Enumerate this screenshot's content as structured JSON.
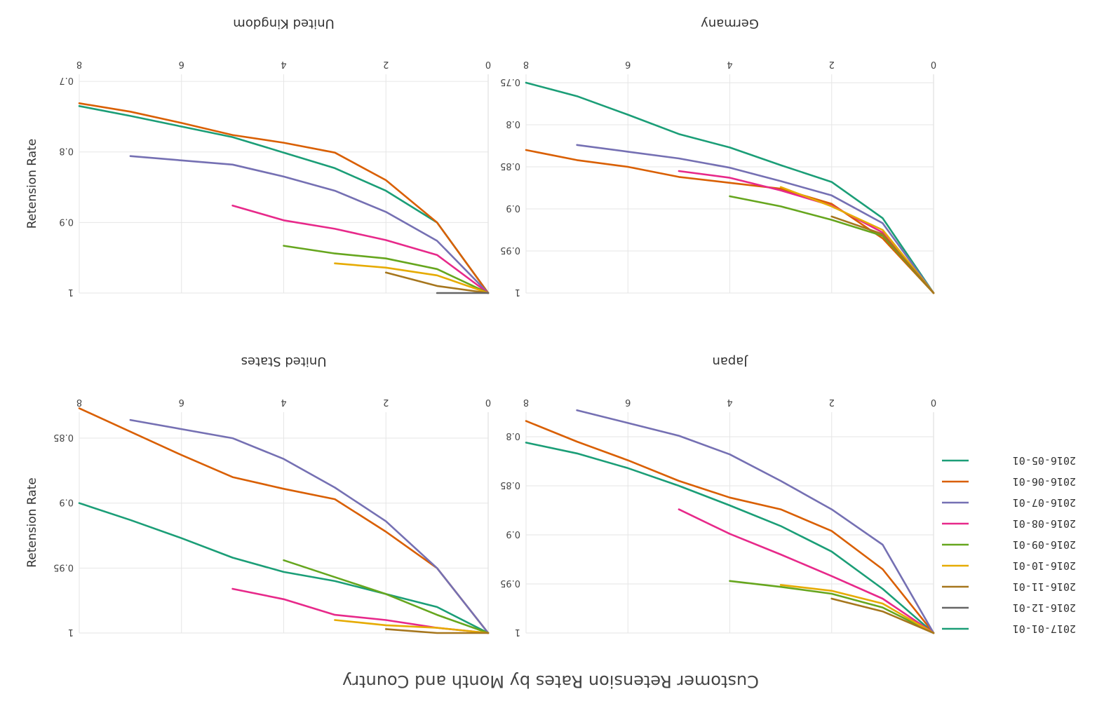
{
  "chart_data": {
    "type": "line",
    "title": "Customer Retension Rates by Month and Country",
    "ylabel": "Retension Rate",
    "x_ticks": [
      "0",
      "2",
      "4",
      "6",
      "8"
    ],
    "xlim": [
      0,
      8
    ],
    "legend_position": "left-bottom",
    "colors": {
      "2016-05-01": "#1b9e77",
      "2016-06-01": "#d95f02",
      "2016-07-01": "#7570b3",
      "2016-08-01": "#e7298a",
      "2016-09-01": "#66a61e",
      "2016-10-01": "#e6ab02",
      "2016-11-01": "#a6761d",
      "2016-12-01": "#666666",
      "2017-01-01": "#1b9e77"
    },
    "legend": [
      "2017-01-01",
      "2016-12-01",
      "2016-11-01",
      "2016-10-01",
      "2016-09-01",
      "2016-08-01",
      "2016-07-01",
      "2016-06-01",
      "2016-05-01"
    ],
    "panels": [
      {
        "title": "United Kingdom",
        "y_ticks": [
          "1",
          "0.9",
          "0.8",
          "0.7"
        ],
        "y_tick_values": [
          1,
          0.9,
          0.8,
          0.7
        ],
        "ylim": [
          0.69,
          1.0
        ],
        "series": [
          {
            "name": "2016-05-01",
            "x": [
              0,
              1,
              2,
              3,
              4,
              5,
              6,
              7,
              8
            ],
            "values": [
              1,
              0.9,
              0.855,
              0.823,
              0.801,
              0.779,
              0.764,
              0.749,
              0.735
            ]
          },
          {
            "name": "2016-06-01",
            "x": [
              0,
              1,
              2,
              3,
              4,
              5,
              6,
              7,
              8
            ],
            "values": [
              1,
              0.9,
              0.84,
              0.801,
              0.787,
              0.776,
              0.759,
              0.743,
              0.731
            ]
          },
          {
            "name": "2016-07-01",
            "x": [
              0,
              1,
              2,
              3,
              4,
              5,
              6,
              7
            ],
            "values": [
              1,
              0.926,
              0.885,
              0.855,
              0.835,
              0.818,
              0.812,
              0.806
            ]
          },
          {
            "name": "2016-08-01",
            "x": [
              0,
              1,
              2,
              3,
              4,
              5
            ],
            "values": [
              1,
              0.946,
              0.925,
              0.909,
              0.897,
              0.876
            ]
          },
          {
            "name": "2016-09-01",
            "x": [
              0,
              1,
              2,
              3,
              4
            ],
            "values": [
              1,
              0.966,
              0.951,
              0.944,
              0.933
            ]
          },
          {
            "name": "2016-10-01",
            "x": [
              0,
              1,
              2,
              3
            ],
            "values": [
              1,
              0.975,
              0.964,
              0.958
            ]
          },
          {
            "name": "2016-11-01",
            "x": [
              0,
              1,
              2
            ],
            "values": [
              1,
              0.99,
              0.971
            ]
          },
          {
            "name": "2016-12-01",
            "x": [
              0,
              1
            ],
            "values": [
              1,
              1
            ]
          }
        ]
      },
      {
        "title": "Germany",
        "y_ticks": [
          "1",
          "0.95",
          "0.9",
          "0.85",
          "0.8",
          "0.75"
        ],
        "y_tick_values": [
          1,
          0.95,
          0.9,
          0.85,
          0.8,
          0.75
        ],
        "ylim": [
          0.74,
          1.0
        ],
        "series": [
          {
            "name": "2016-05-01",
            "x": [
              0,
              1,
              2,
              3,
              4,
              5,
              6,
              7,
              8
            ],
            "values": [
              1,
              0.911,
              0.868,
              0.848,
              0.827,
              0.811,
              0.788,
              0.766,
              0.75
            ]
          },
          {
            "name": "2016-06-01",
            "x": [
              0,
              1,
              2,
              3,
              4,
              5,
              6,
              7,
              8
            ],
            "values": [
              1,
              0.935,
              0.894,
              0.876,
              0.869,
              0.862,
              0.85,
              0.842,
              0.83
            ]
          },
          {
            "name": "2016-07-01",
            "x": [
              0,
              1,
              2,
              3,
              4,
              5,
              6,
              7
            ],
            "values": [
              1,
              0.917,
              0.884,
              0.867,
              0.851,
              0.84,
              0.832,
              0.824
            ]
          },
          {
            "name": "2016-08-01",
            "x": [
              0,
              1,
              2,
              3,
              4,
              5
            ],
            "values": [
              1,
              0.928,
              0.896,
              0.878,
              0.863,
              0.855
            ]
          },
          {
            "name": "2016-09-01",
            "x": [
              0,
              1,
              2,
              3,
              4
            ],
            "values": [
              1,
              0.932,
              0.913,
              0.897,
              0.885
            ]
          },
          {
            "name": "2016-10-01",
            "x": [
              0,
              1,
              2,
              3
            ],
            "values": [
              1,
              0.925,
              0.897,
              0.874
            ]
          },
          {
            "name": "2016-11-01",
            "x": [
              0,
              1,
              2
            ],
            "values": [
              1,
              0.93,
              0.909
            ]
          }
        ]
      },
      {
        "title": "United States",
        "y_ticks": [
          "1",
          "0.95",
          "0.9",
          "0.85"
        ],
        "y_tick_values": [
          1,
          0.95,
          0.9,
          0.85
        ],
        "ylim": [
          0.83,
          1.0
        ],
        "series": [
          {
            "name": "2016-05-01",
            "x": [
              0,
              1,
              2,
              3,
              4,
              5,
              6,
              7,
              8
            ],
            "values": [
              1,
              0.98,
              0.97,
              0.96,
              0.953,
              0.942,
              0.927,
              0.913,
              0.9
            ]
          },
          {
            "name": "2016-06-01",
            "x": [
              0,
              1,
              2,
              3,
              4,
              5,
              6,
              7,
              8
            ],
            "values": [
              1,
              0.95,
              0.922,
              0.897,
              0.889,
              0.88,
              0.863,
              0.845,
              0.827
            ]
          },
          {
            "name": "2016-07-01",
            "x": [
              0,
              1,
              2,
              3,
              4,
              5,
              6,
              7
            ],
            "values": [
              1,
              0.95,
              0.914,
              0.888,
              0.866,
              0.85,
              0.843,
              0.836
            ]
          },
          {
            "name": "2016-08-01",
            "x": [
              0,
              1,
              2,
              3,
              4,
              5
            ],
            "values": [
              1,
              0.996,
              0.99,
              0.986,
              0.974,
              0.966
            ]
          },
          {
            "name": "2016-09-01",
            "x": [
              0,
              1,
              2,
              3,
              4
            ],
            "values": [
              1,
              0.986,
              0.97,
              0.957,
              0.944
            ]
          },
          {
            "name": "2016-10-01",
            "x": [
              0,
              1,
              2,
              3
            ],
            "values": [
              1,
              0.996,
              0.994,
              0.99
            ]
          },
          {
            "name": "2016-11-01",
            "x": [
              0,
              1,
              2
            ],
            "values": [
              1,
              1,
              0.997
            ]
          }
        ]
      },
      {
        "title": "Japan",
        "y_ticks": [
          "1",
          "0.95",
          "0.9",
          "0.85",
          "0.8"
        ],
        "y_tick_values": [
          1,
          0.95,
          0.9,
          0.85,
          0.8
        ],
        "ylim": [
          0.775,
          1.0
        ],
        "series": [
          {
            "name": "2016-05-01",
            "x": [
              0,
              1,
              2,
              3,
              4,
              5,
              6,
              7,
              8
            ],
            "values": [
              1,
              0.955,
              0.917,
              0.891,
              0.87,
              0.85,
              0.832,
              0.817,
              0.806
            ]
          },
          {
            "name": "2016-06-01",
            "x": [
              0,
              1,
              2,
              3,
              4,
              5,
              6,
              7,
              8
            ],
            "values": [
              1,
              0.935,
              0.896,
              0.874,
              0.862,
              0.845,
              0.824,
              0.805,
              0.784
            ]
          },
          {
            "name": "2016-07-01",
            "x": [
              0,
              1,
              2,
              3,
              4,
              5,
              6,
              7
            ],
            "values": [
              1,
              0.91,
              0.874,
              0.845,
              0.818,
              0.799,
              0.786,
              0.773
            ]
          },
          {
            "name": "2016-08-01",
            "x": [
              0,
              1,
              2,
              3,
              4,
              5
            ],
            "values": [
              1,
              0.965,
              0.942,
              0.92,
              0.899,
              0.874
            ]
          },
          {
            "name": "2016-09-01",
            "x": [
              0,
              1,
              2,
              3,
              4
            ],
            "values": [
              1,
              0.974,
              0.96,
              0.953,
              0.947
            ]
          },
          {
            "name": "2016-10-01",
            "x": [
              0,
              1,
              2,
              3
            ],
            "values": [
              1,
              0.97,
              0.957,
              0.951
            ]
          },
          {
            "name": "2016-11-01",
            "x": [
              0,
              1,
              2
            ],
            "values": [
              1,
              0.978,
              0.965
            ]
          }
        ]
      }
    ]
  }
}
